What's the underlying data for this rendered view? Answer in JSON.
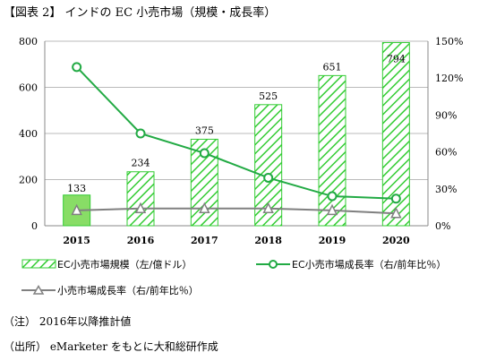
{
  "title": "【図表 2】 インドの EC 小売市場（規模・成長率）",
  "chart_data": {
    "type": "bar",
    "categories": [
      "2015",
      "2016",
      "2017",
      "2018",
      "2019",
      "2020"
    ],
    "bar_series": {
      "name": "EC小売市場規模（左/億ドル）",
      "values": [
        133,
        234,
        375,
        525,
        651,
        794
      ],
      "data_labels": [
        "133",
        "234",
        "375",
        "525",
        "651",
        "794"
      ]
    },
    "line_series": [
      {
        "name": "EC小売市場成長率（右/前年比％）",
        "axis": "right",
        "values": [
          129,
          75,
          59,
          39,
          24,
          22
        ],
        "color": "#22aa44",
        "marker": "circle"
      },
      {
        "name": "小売市場成長率（右/前年比％）",
        "axis": "right",
        "values": [
          12.5,
          14,
          14,
          14,
          12.5,
          10
        ],
        "color": "#808080",
        "marker": "triangle"
      }
    ],
    "y_left": {
      "min": 0,
      "max": 800,
      "ticks": [
        "0",
        "200",
        "400",
        "600",
        "800"
      ]
    },
    "y_right": {
      "min": 0,
      "max": 150,
      "ticks": [
        "0%",
        "30%",
        "60%",
        "90%",
        "120%",
        "150%"
      ]
    },
    "grid": true,
    "colors": {
      "solid_bar": "#88dd66",
      "hatch_bar": "#33cc33",
      "grid": "#bbbbbb",
      "axis": "#888888"
    }
  },
  "legend": {
    "bar_label": "EC小売市場規模（左/億ドル）",
    "ec_line_label": "EC小売市場成長率（右/前年比％）",
    "retail_line_label": "小売市場成長率（右/前年比％）"
  },
  "notes": {
    "note": "（注） 2016年以降推計値",
    "source": "（出所） eMarketer をもとに大和総研作成"
  }
}
